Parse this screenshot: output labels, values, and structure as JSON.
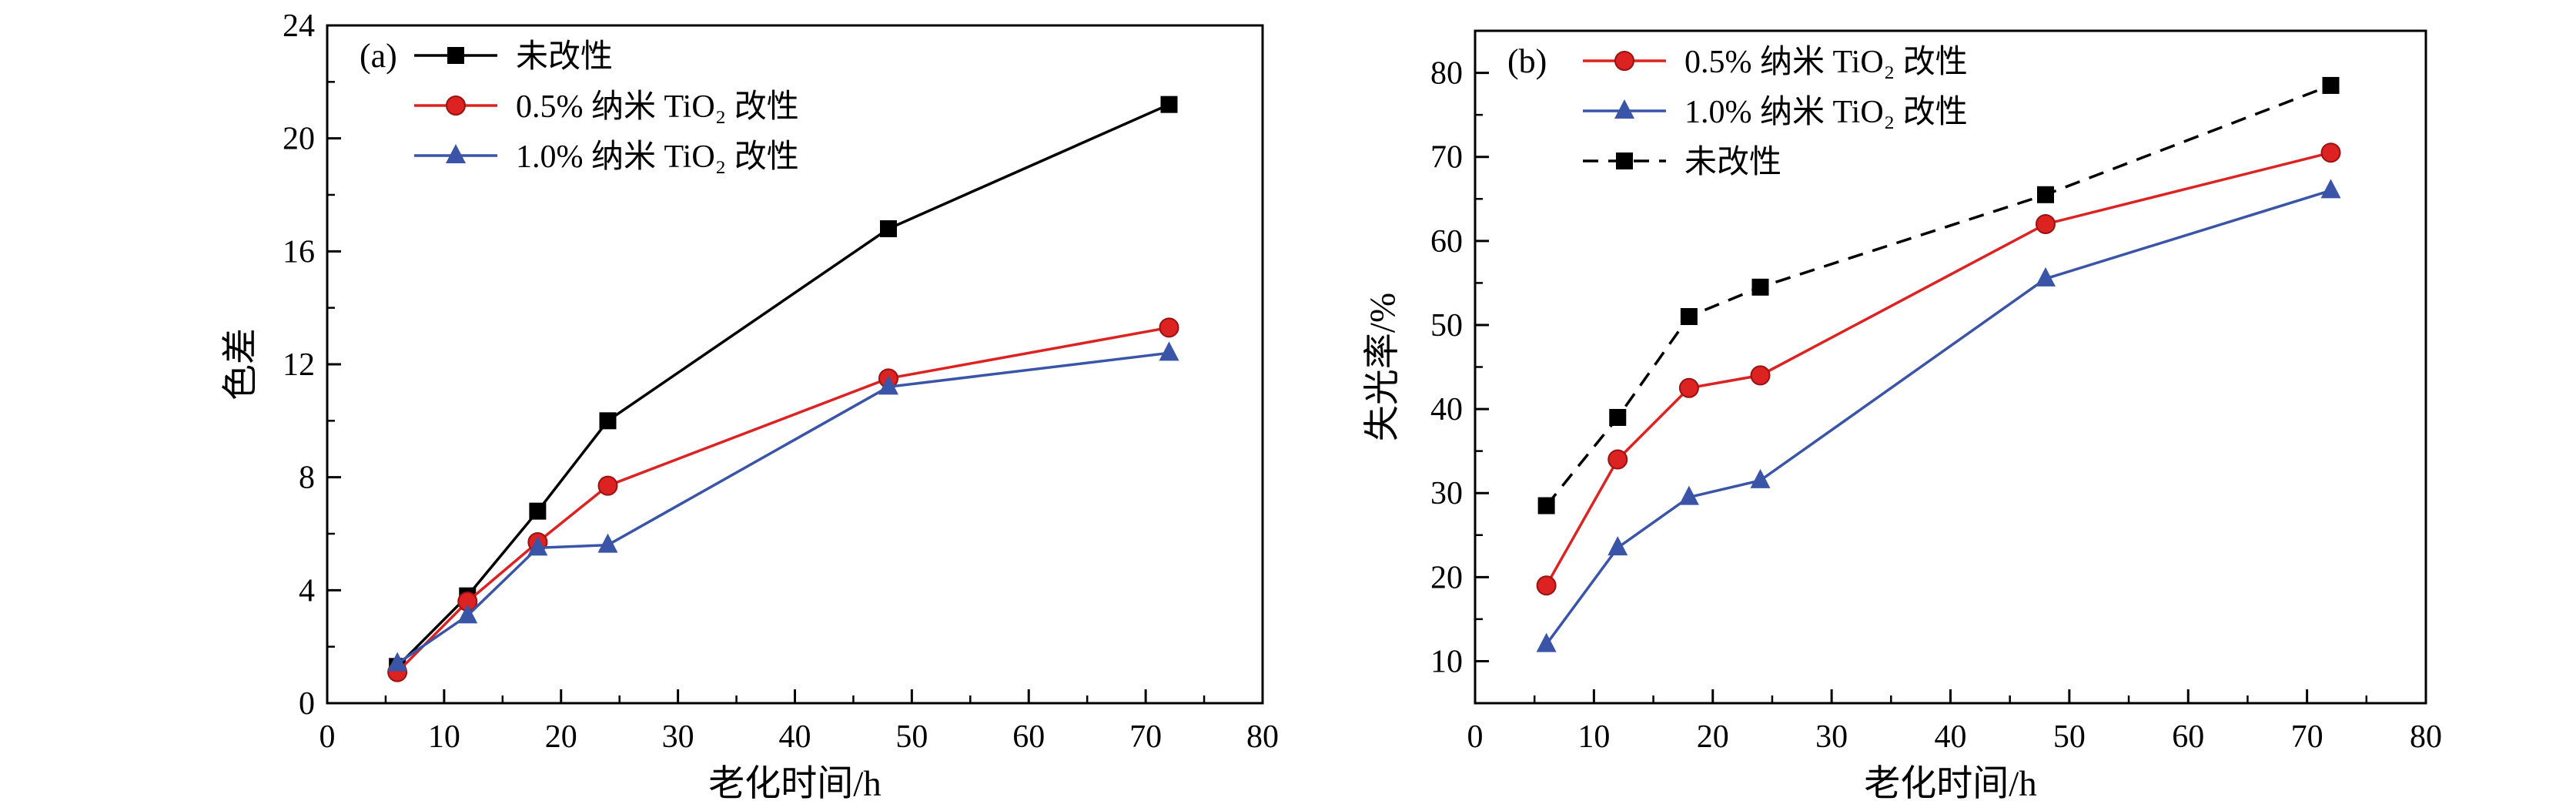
{
  "figure": {
    "background": "#ffffff"
  },
  "chart_data": [
    {
      "type": "line",
      "panel_label": "(a)",
      "xlabel": "老化时间/h",
      "ylabel": "色差",
      "xlim": [
        0,
        80
      ],
      "ylim": [
        0,
        24
      ],
      "xticks": [
        0,
        10,
        20,
        30,
        40,
        50,
        60,
        70,
        80
      ],
      "yticks": [
        0,
        4,
        8,
        12,
        16,
        20,
        24
      ],
      "xminor": 5,
      "yminor": 2,
      "grid": false,
      "legend_position": "top-left",
      "x": [
        6,
        12,
        18,
        24,
        48,
        72
      ],
      "series": [
        {
          "name": "未改性",
          "color": "#000000",
          "marker": "square",
          "line": "solid",
          "values": [
            1.3,
            3.8,
            6.8,
            10.0,
            16.8,
            21.2
          ]
        },
        {
          "name": "0.5% 纳米 TiO₂ 改性",
          "color": "#dd2222",
          "marker": "circle",
          "line": "solid",
          "values": [
            1.1,
            3.6,
            5.7,
            7.7,
            11.5,
            13.3
          ]
        },
        {
          "name": "1.0% 纳米 TiO₂ 改性",
          "color": "#3a55a8",
          "marker": "triangle",
          "line": "solid",
          "values": [
            1.4,
            3.1,
            5.5,
            5.6,
            11.2,
            12.4
          ]
        }
      ]
    },
    {
      "type": "line",
      "panel_label": "(b)",
      "xlabel": "老化时间/h",
      "ylabel": "失光率/%",
      "xlim": [
        0,
        80
      ],
      "ylim": [
        5,
        85
      ],
      "xticks": [
        0,
        10,
        20,
        30,
        40,
        50,
        60,
        70,
        80
      ],
      "yticks": [
        10,
        20,
        30,
        40,
        50,
        60,
        70,
        80
      ],
      "xminor": 5,
      "yminor": 5,
      "grid": false,
      "legend_position": "top-left",
      "x": [
        6,
        12,
        18,
        24,
        48,
        72
      ],
      "series": [
        {
          "name": "0.5% 纳米 TiO₂ 改性",
          "color": "#dd2222",
          "marker": "circle",
          "line": "solid",
          "values": [
            19.0,
            34.0,
            42.5,
            44.0,
            62.0,
            70.5
          ]
        },
        {
          "name": "1.0% 纳米 TiO₂ 改性",
          "color": "#3a55a8",
          "marker": "triangle",
          "line": "solid",
          "values": [
            12.0,
            23.5,
            29.5,
            31.5,
            55.5,
            66.0
          ]
        },
        {
          "name": "未改性",
          "color": "#000000",
          "marker": "square",
          "line": "dashed",
          "values": [
            28.5,
            39.0,
            51.0,
            54.5,
            65.5,
            78.5
          ]
        }
      ]
    }
  ]
}
